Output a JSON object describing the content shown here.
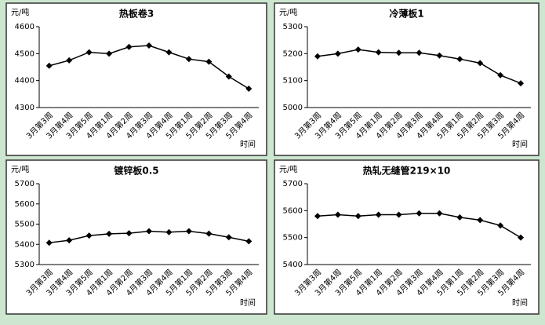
{
  "chart_data": [
    {
      "type": "line",
      "title": "热板卷3",
      "y_label": "元/吨",
      "x_label": "时间",
      "categories": [
        "3月第3周",
        "3月第4周",
        "3月第5周",
        "4月第1周",
        "4月第2周",
        "4月第3周",
        "4月第4周",
        "5月第1周",
        "5月第2周",
        "5月第3周",
        "5月第4周"
      ],
      "series": [
        {
          "color": "#000000",
          "values": [
            4455,
            4475,
            4505,
            4500,
            4525,
            4530,
            4505,
            4480,
            4470,
            4415,
            4370
          ]
        }
      ],
      "ylim": [
        4300,
        4600
      ],
      "yticks": [
        4300,
        4400,
        4500,
        4600
      ]
    },
    {
      "type": "line",
      "title": "冷薄板1",
      "y_label": "元/吨",
      "x_label": "时间",
      "categories": [
        "3月第3周",
        "3月第4周",
        "3月第5周",
        "4月第1周",
        "4月第2周",
        "4月第3周",
        "4月第4周",
        "5月第1周",
        "5月第2周",
        "5月第3周",
        "5月第4周"
      ],
      "series": [
        {
          "color": "#000000",
          "values": [
            5190,
            5200,
            5215,
            5205,
            5203,
            5203,
            5193,
            5180,
            5165,
            5120,
            5090
          ]
        }
      ],
      "ylim": [
        5000,
        5300
      ],
      "yticks": [
        5000,
        5100,
        5200,
        5300
      ]
    },
    {
      "type": "line",
      "title": "镀锌板0.5",
      "y_label": "元/吨",
      "x_label": "时间",
      "categories": [
        "3月第3周",
        "3月第4周",
        "3月第5周",
        "4月第1周",
        "4月第2周",
        "4月第3周",
        "4月第4周",
        "5月第1周",
        "5月第2周",
        "5月第3周",
        "5月第4周"
      ],
      "series": [
        {
          "color": "#000000",
          "values": [
            5408,
            5420,
            5443,
            5452,
            5455,
            5465,
            5460,
            5465,
            5453,
            5435,
            5415
          ]
        }
      ],
      "ylim": [
        5300,
        5700
      ],
      "yticks": [
        5300,
        5400,
        5500,
        5600,
        5700
      ]
    },
    {
      "type": "line",
      "title": "热轧无缝管219×10",
      "y_label": "元/吨",
      "x_label": "时间",
      "categories": [
        "3月第3周",
        "3月第4周",
        "3月第5周",
        "4月第1周",
        "4月第2周",
        "4月第3周",
        "4月第4周",
        "5月第1周",
        "5月第2周",
        "5月第3周",
        "5月第4周"
      ],
      "series": [
        {
          "color": "#000000",
          "values": [
            5580,
            5585,
            5580,
            5585,
            5585,
            5590,
            5590,
            5575,
            5565,
            5545,
            5500
          ]
        }
      ],
      "ylim": [
        5400,
        5700
      ],
      "yticks": [
        5400,
        5500,
        5600,
        5700
      ]
    }
  ]
}
